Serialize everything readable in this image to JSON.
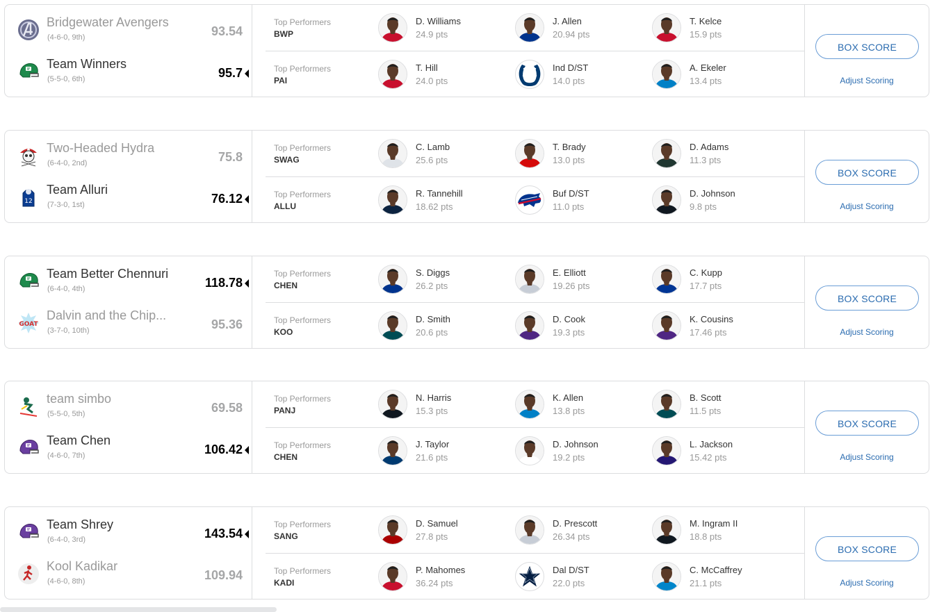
{
  "labels": {
    "box_score": "BOX SCORE",
    "adjust_scoring": "Adjust Scoring",
    "top_performers": "Top Performers"
  },
  "colors": {
    "link_blue": "#2b6cb0",
    "muted_gray": "#999999",
    "divider": "#dcdddf"
  },
  "matchups": [
    {
      "teams": [
        {
          "name": "Bridgewater Avengers",
          "record": "(4-6-0, 9th)",
          "score": "93.54",
          "logo": "avengers-logo",
          "winner": false
        },
        {
          "name": "Team Winners",
          "record": "(5-5-0, 6th)",
          "score": "95.7",
          "logo": "green-helmet-logo",
          "winner": true
        }
      ],
      "performers": [
        {
          "abbrev": "BWP",
          "players": [
            {
              "name": "D. Williams",
              "pts": "24.9 pts",
              "team_color": "#c8102e"
            },
            {
              "name": "J. Allen",
              "pts": "20.94 pts",
              "team_color": "#00338d"
            },
            {
              "name": "T. Kelce",
              "pts": "15.9 pts",
              "team_color": "#c8102e"
            }
          ]
        },
        {
          "abbrev": "PAI",
          "players": [
            {
              "name": "T. Hill",
              "pts": "24.0 pts",
              "team_color": "#c8102e"
            },
            {
              "name": "Ind D/ST",
              "pts": "14.0 pts",
              "team_color": "#003a70",
              "logo": "colts-horseshoe-icon"
            },
            {
              "name": "A. Ekeler",
              "pts": "13.4 pts",
              "team_color": "#0080c6"
            }
          ]
        }
      ]
    },
    {
      "teams": [
        {
          "name": "Two-Headed Hydra",
          "record": "(6-4-0, 2nd)",
          "score": "75.8",
          "logo": "pirate-skull-logo",
          "winner": false
        },
        {
          "name": "Team Alluri",
          "record": "(7-3-0, 1st)",
          "score": "76.12",
          "logo": "blue-jersey-logo",
          "winner": true
        }
      ],
      "performers": [
        {
          "abbrev": "SWAG",
          "players": [
            {
              "name": "C. Lamb",
              "pts": "25.6 pts",
              "team_color": "#dfe3e8"
            },
            {
              "name": "T. Brady",
              "pts": "13.0 pts",
              "team_color": "#d50a0a"
            },
            {
              "name": "D. Adams",
              "pts": "11.3 pts",
              "team_color": "#203731"
            }
          ]
        },
        {
          "abbrev": "ALLU",
          "players": [
            {
              "name": "R. Tannehill",
              "pts": "18.62 pts",
              "team_color": "#0c2340"
            },
            {
              "name": "Buf D/ST",
              "pts": "11.0 pts",
              "team_color": "#00338d",
              "logo": "bills-buffalo-icon"
            },
            {
              "name": "D. Johnson",
              "pts": "9.8 pts",
              "team_color": "#101820"
            }
          ]
        }
      ]
    },
    {
      "teams": [
        {
          "name": "Team Better Chennuri",
          "record": "(6-4-0, 4th)",
          "score": "118.78",
          "logo": "green-helmet-logo",
          "winner": true
        },
        {
          "name": "Dalvin and the Chip...",
          "record": "(3-7-0, 10th)",
          "score": "95.36",
          "logo": "goat-logo",
          "winner": false
        }
      ],
      "performers": [
        {
          "abbrev": "CHEN",
          "players": [
            {
              "name": "S. Diggs",
              "pts": "26.2 pts",
              "team_color": "#00338d"
            },
            {
              "name": "E. Elliott",
              "pts": "19.26 pts",
              "team_color": "#c7cdd6"
            },
            {
              "name": "C. Kupp",
              "pts": "17.7 pts",
              "team_color": "#003594"
            }
          ]
        },
        {
          "abbrev": "KOO",
          "players": [
            {
              "name": "D. Smith",
              "pts": "20.6 pts",
              "team_color": "#004c54"
            },
            {
              "name": "D. Cook",
              "pts": "19.3 pts",
              "team_color": "#4f2683"
            },
            {
              "name": "K. Cousins",
              "pts": "17.46 pts",
              "team_color": "#4f2683"
            }
          ]
        }
      ]
    },
    {
      "teams": [
        {
          "name": "team simbo",
          "record": "(5-5-0, 5th)",
          "score": "69.58",
          "logo": "skier-logo",
          "winner": false
        },
        {
          "name": "Team Chen",
          "record": "(4-6-0, 7th)",
          "score": "106.42",
          "logo": "purple-helmet-logo",
          "winner": true
        }
      ],
      "performers": [
        {
          "abbrev": "PANJ",
          "players": [
            {
              "name": "N. Harris",
              "pts": "15.3 pts",
              "team_color": "#101820"
            },
            {
              "name": "K. Allen",
              "pts": "13.8 pts",
              "team_color": "#0080c6"
            },
            {
              "name": "B. Scott",
              "pts": "11.5 pts",
              "team_color": "#004c54"
            }
          ]
        },
        {
          "abbrev": "CHEN",
          "players": [
            {
              "name": "J. Taylor",
              "pts": "21.6 pts",
              "team_color": "#003a70"
            },
            {
              "name": "D. Johnson",
              "pts": "19.2 pts",
              "team_color": "#ffffff"
            },
            {
              "name": "L. Jackson",
              "pts": "15.42 pts",
              "team_color": "#241773"
            }
          ]
        }
      ]
    },
    {
      "teams": [
        {
          "name": "Team Shrey",
          "record": "(6-4-0, 3rd)",
          "score": "143.54",
          "logo": "purple-helmet-logo",
          "winner": true
        },
        {
          "name": "Kool Kadikar",
          "record": "(4-6-0, 8th)",
          "score": "109.94",
          "logo": "runner-logo",
          "winner": false
        }
      ],
      "performers": [
        {
          "abbrev": "SANG",
          "players": [
            {
              "name": "D. Samuel",
              "pts": "27.8 pts",
              "team_color": "#aa0000"
            },
            {
              "name": "D. Prescott",
              "pts": "26.34 pts",
              "team_color": "#c7cdd6"
            },
            {
              "name": "M. Ingram II",
              "pts": "18.8 pts",
              "team_color": "#101820"
            }
          ]
        },
        {
          "abbrev": "KADI",
          "players": [
            {
              "name": "P. Mahomes",
              "pts": "36.24 pts",
              "team_color": "#c8102e"
            },
            {
              "name": "Dal D/ST",
              "pts": "22.0 pts",
              "team_color": "#041e42",
              "logo": "cowboys-star-icon"
            },
            {
              "name": "C. McCaffrey",
              "pts": "21.1 pts",
              "team_color": "#0085ca"
            }
          ]
        }
      ]
    }
  ]
}
